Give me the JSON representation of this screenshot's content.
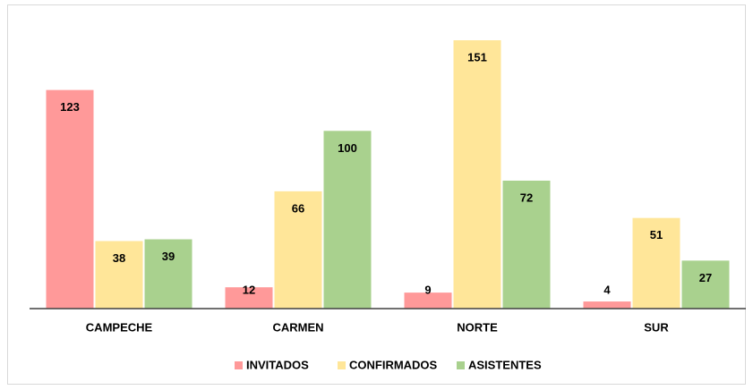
{
  "chart_data": {
    "type": "bar",
    "categories": [
      "CAMPECHE",
      "CARMEN",
      "NORTE",
      "SUR"
    ],
    "series": [
      {
        "name": "INVITADOS",
        "color": "#ff9999",
        "values": [
          123,
          12,
          9,
          4
        ]
      },
      {
        "name": "CONFIRMADOS",
        "color": "#ffe699",
        "values": [
          38,
          66,
          151,
          51
        ]
      },
      {
        "name": "ASISTENTES",
        "color": "#a9d18e",
        "values": [
          39,
          100,
          72,
          27
        ]
      }
    ],
    "legend": "bottom"
  }
}
